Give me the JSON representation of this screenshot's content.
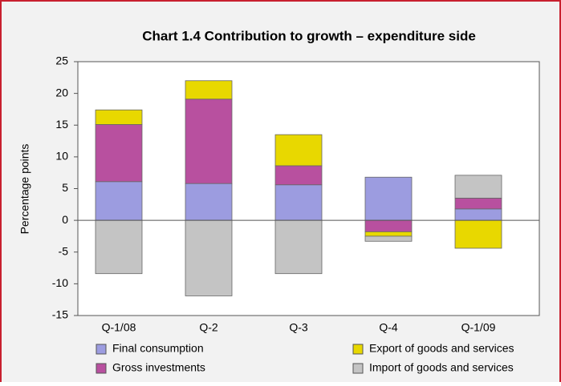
{
  "chart_data": {
    "type": "stacked-bar",
    "title": "Chart 1.4 Contribution to growth – expenditure side",
    "y_label": "Percentage points",
    "categories": [
      "Q-1/08",
      "Q-2",
      "Q-3",
      "Q-4",
      "Q-1/09"
    ],
    "series": [
      {
        "name": "Final consumption",
        "color": "#9c9ce0",
        "values": [
          6.1,
          5.8,
          5.6,
          6.8,
          1.8
        ]
      },
      {
        "name": "Gross investments",
        "color": "#b8509f",
        "values": [
          9,
          13.3,
          3,
          -1.8,
          1.7
        ]
      },
      {
        "name": "Export of goods and services",
        "color": "#e8d800",
        "values": [
          2.3,
          2.9,
          4.9,
          -0.7,
          -4.4
        ]
      },
      {
        "name": "Import of goods and services",
        "color": "#c4c4c4",
        "values": [
          -8.4,
          -11.9,
          -8.4,
          -0.8,
          3.6
        ]
      }
    ],
    "ylim": [
      -15,
      25
    ],
    "yticks": [
      -15,
      -10,
      -5,
      0,
      5,
      10,
      15,
      20,
      25
    ],
    "legend": "bottom",
    "grid": false
  }
}
